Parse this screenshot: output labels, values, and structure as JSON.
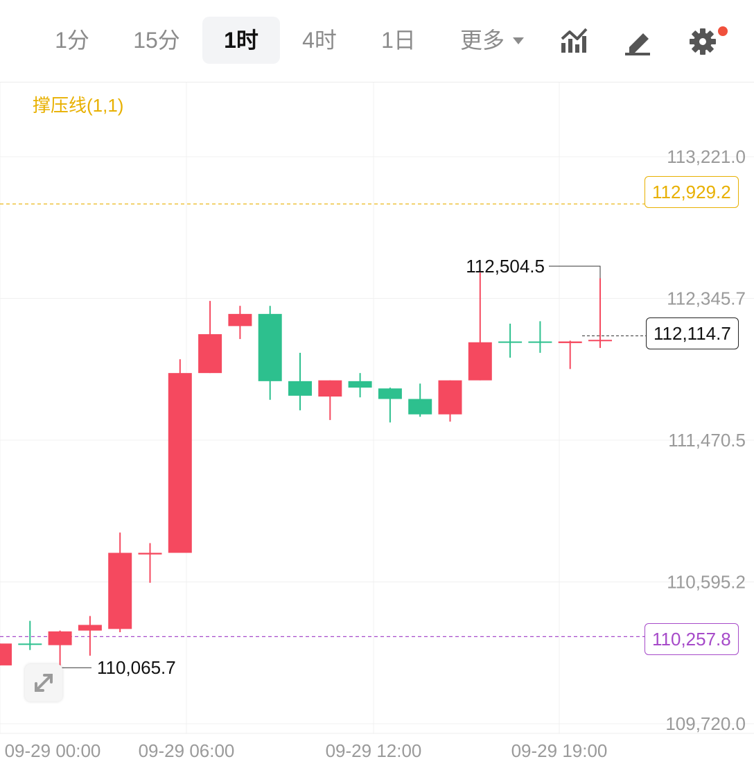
{
  "toolbar": {
    "timeframes": [
      "1分",
      "15分",
      "1时",
      "4时",
      "1日"
    ],
    "active": "1时",
    "more_label": "更多"
  },
  "icons": {
    "indicator": "chart-indicator-icon",
    "draw": "pencil-icon",
    "settings": "gear-icon",
    "notification": "red-dot-badge",
    "expand": "expand-arrows-icon"
  },
  "indicator_label": "撑压线(1,1)",
  "colors": {
    "up": "#f5495f",
    "down": "#2dc08e",
    "resistance": "#e8b000",
    "support": "#a64ac9",
    "axis_text": "#9a9a9a"
  },
  "chart_data": {
    "type": "candlestick",
    "y_ticks": [
      113221.0,
      112345.7,
      111470.5,
      110595.2,
      109720.0
    ],
    "y_tick_labels": [
      "113,221.0",
      "112,345.7",
      "111,470.5",
      "110,595.2",
      "109,720.0"
    ],
    "x_tick_labels": [
      "09-29 00:00",
      "09-29 06:00",
      "09-29 12:00",
      "09-29 19:00"
    ],
    "resistance_line": {
      "value": 112929.2,
      "label": "112,929.2"
    },
    "support_line": {
      "value": 110257.8,
      "label": "110,257.8"
    },
    "current_price": {
      "value": 112114.7,
      "label": "112,114.7"
    },
    "max_marker": {
      "value": 112504.5,
      "label": "112,504.5"
    },
    "min_marker": {
      "value": 110065.7,
      "label": "110,065.7"
    },
    "candles": [
      {
        "o": 110215,
        "h": 110215,
        "c": 110080,
        "l": 110080,
        "dir": "up"
      },
      {
        "o": 110215,
        "h": 110355,
        "c": 110215,
        "l": 110175,
        "dir": "down"
      },
      {
        "o": 110205,
        "h": 110295,
        "c": 110290,
        "l": 110065,
        "dir": "up"
      },
      {
        "o": 110330,
        "h": 110385,
        "c": 110295,
        "l": 110140,
        "dir": "up"
      },
      {
        "o": 110775,
        "h": 110900,
        "c": 110305,
        "l": 110285,
        "dir": "up"
      },
      {
        "o": 110775,
        "h": 110835,
        "c": 110765,
        "l": 110590,
        "dir": "up"
      },
      {
        "o": 111885,
        "h": 111970,
        "c": 110775,
        "l": 110775,
        "dir": "up"
      },
      {
        "o": 112125,
        "h": 112330,
        "c": 111885,
        "l": 111885,
        "dir": "up"
      },
      {
        "o": 112250,
        "h": 112300,
        "c": 112175,
        "l": 112095,
        "dir": "up"
      },
      {
        "o": 112250,
        "h": 112300,
        "c": 111835,
        "l": 111720,
        "dir": "down"
      },
      {
        "o": 111835,
        "h": 112010,
        "c": 111745,
        "l": 111655,
        "dir": "down"
      },
      {
        "o": 111840,
        "h": 111840,
        "c": 111740,
        "l": 111595,
        "dir": "up"
      },
      {
        "o": 111835,
        "h": 111885,
        "c": 111795,
        "l": 111735,
        "dir": "down"
      },
      {
        "o": 111790,
        "h": 111795,
        "c": 111725,
        "l": 111580,
        "dir": "down"
      },
      {
        "o": 111725,
        "h": 111820,
        "c": 111630,
        "l": 111615,
        "dir": "down"
      },
      {
        "o": 111840,
        "h": 111840,
        "c": 111630,
        "l": 111585,
        "dir": "up"
      },
      {
        "o": 112075,
        "h": 112505,
        "c": 111840,
        "l": 111840,
        "dir": "up"
      },
      {
        "o": 112080,
        "h": 112190,
        "c": 112080,
        "l": 111980,
        "dir": "down"
      },
      {
        "o": 112080,
        "h": 112205,
        "c": 112080,
        "l": 112010,
        "dir": "down"
      },
      {
        "o": 112080,
        "h": 112085,
        "c": 112070,
        "l": 111910,
        "dir": "up"
      },
      {
        "o": 112090,
        "h": 112470,
        "c": 112085,
        "l": 112040,
        "dir": "up"
      }
    ]
  }
}
